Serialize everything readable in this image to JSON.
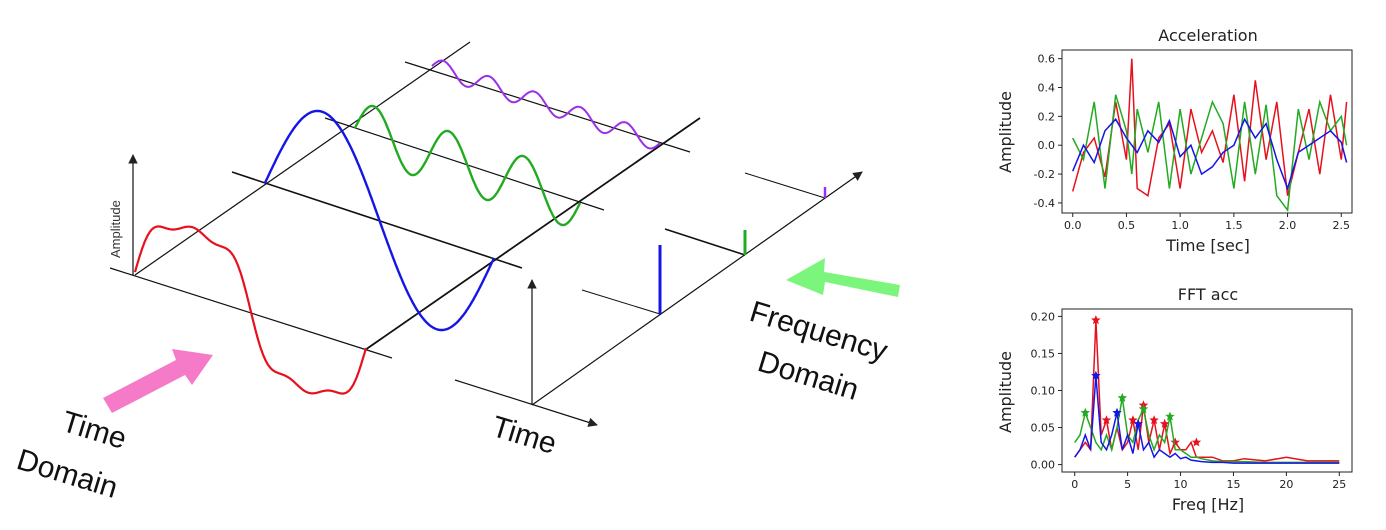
{
  "diagram": {
    "labels": {
      "amplitude_axis": "Amplitude",
      "time_domain_line1": "Time",
      "time_domain_line2": "Domain",
      "time_axis": "Time",
      "freq_domain_line1": "Frequency",
      "freq_domain_line2": "Domain"
    },
    "colors": {
      "composite": "#e8101c",
      "wave1": "#1515e6",
      "wave2": "#22aa22",
      "wave3": "#9b30e8",
      "time_arrow": "#f57bc8",
      "freq_arrow": "#7cf57c"
    }
  },
  "chart_data": [
    {
      "type": "line",
      "title": "Acceleration",
      "xlabel": "Time [sec]",
      "ylabel": "Amplitude",
      "xlim": [
        -0.1,
        2.6
      ],
      "ylim": [
        -0.47,
        0.66
      ],
      "xticks": [
        "0.0",
        "0.5",
        "1.0",
        "1.5",
        "2.0",
        "2.5"
      ],
      "yticks": [
        "-0.4",
        "-0.2",
        "0.0",
        "0.2",
        "0.4",
        "0.6"
      ],
      "x": [
        0.0,
        0.1,
        0.2,
        0.3,
        0.4,
        0.5,
        0.55,
        0.6,
        0.7,
        0.8,
        0.9,
        1.0,
        1.1,
        1.2,
        1.3,
        1.4,
        1.5,
        1.6,
        1.7,
        1.8,
        1.9,
        2.0,
        2.1,
        2.2,
        2.3,
        2.4,
        2.5,
        2.55
      ],
      "series": [
        {
          "color": "#e8101c",
          "values": [
            -0.32,
            -0.05,
            0.05,
            -0.22,
            0.3,
            -0.1,
            0.6,
            -0.3,
            -0.35,
            0.05,
            0.15,
            -0.3,
            0.25,
            -0.05,
            0.1,
            -0.12,
            0.35,
            -0.25,
            0.45,
            -0.1,
            0.3,
            -0.35,
            -0.05,
            0.25,
            -0.2,
            0.35,
            -0.1,
            0.3
          ]
        },
        {
          "color": "#22aa22",
          "values": [
            0.05,
            -0.1,
            0.3,
            -0.3,
            0.35,
            0.1,
            -0.2,
            0.25,
            -0.05,
            0.3,
            -0.3,
            0.25,
            -0.2,
            0.05,
            0.3,
            0.15,
            -0.3,
            0.3,
            -0.2,
            0.28,
            -0.35,
            -0.45,
            0.25,
            -0.1,
            0.3,
            0.1,
            0.2,
            0.0
          ]
        },
        {
          "color": "#1515e6",
          "values": [
            -0.18,
            0.0,
            -0.12,
            0.1,
            0.18,
            0.05,
            0.0,
            -0.05,
            0.1,
            0.02,
            0.17,
            -0.08,
            0.0,
            -0.2,
            -0.15,
            -0.05,
            0.0,
            0.18,
            0.05,
            0.15,
            -0.1,
            -0.3,
            -0.05,
            0.0,
            0.05,
            0.1,
            0.02,
            -0.12
          ]
        }
      ]
    },
    {
      "type": "line",
      "title": "FFT acc",
      "xlabel": "Freq [Hz]",
      "ylabel": "Amplitude",
      "xlim": [
        -1.2,
        26.2
      ],
      "ylim": [
        -0.01,
        0.21
      ],
      "xticks": [
        "0",
        "5",
        "10",
        "15",
        "20",
        "25"
      ],
      "yticks": [
        "0.00",
        "0.05",
        "0.10",
        "0.15",
        "0.20"
      ],
      "x": [
        0,
        0.5,
        1,
        1.5,
        2,
        2.5,
        3,
        3.5,
        4,
        4.5,
        5,
        5.5,
        6,
        6.5,
        7,
        7.5,
        8,
        8.5,
        9,
        9.5,
        10,
        10.5,
        11,
        11.5,
        12,
        13,
        14,
        15,
        16,
        18,
        20,
        22,
        25
      ],
      "series": [
        {
          "color": "#e8101c",
          "markers": [
            [
              2.0,
              0.195
            ],
            [
              3.0,
              0.06
            ],
            [
              5.5,
              0.06
            ],
            [
              6.5,
              0.08
            ],
            [
              7.5,
              0.06
            ],
            [
              8.5,
              0.055
            ],
            [
              9.5,
              0.03
            ],
            [
              11.5,
              0.03
            ]
          ],
          "values": [
            0.01,
            0.02,
            0.03,
            0.02,
            0.195,
            0.04,
            0.06,
            0.02,
            0.05,
            0.02,
            0.03,
            0.06,
            0.02,
            0.08,
            0.03,
            0.06,
            0.02,
            0.055,
            0.015,
            0.03,
            0.02,
            0.02,
            0.03,
            0.01,
            0.01,
            0.01,
            0.005,
            0.005,
            0.008,
            0.005,
            0.01,
            0.005,
            0.005
          ]
        },
        {
          "color": "#22aa22",
          "markers": [
            [
              1.0,
              0.07
            ],
            [
              4.5,
              0.09
            ],
            [
              6.5,
              0.075
            ],
            [
              9.0,
              0.065
            ]
          ],
          "values": [
            0.03,
            0.04,
            0.07,
            0.05,
            0.03,
            0.02,
            0.04,
            0.02,
            0.05,
            0.09,
            0.04,
            0.03,
            0.06,
            0.075,
            0.04,
            0.02,
            0.04,
            0.03,
            0.065,
            0.02,
            0.02,
            0.015,
            0.01,
            0.01,
            0.008,
            0.005,
            0.004,
            0.004,
            0.004,
            0.003,
            0.003,
            0.003,
            0.003
          ]
        },
        {
          "color": "#1515e6",
          "markers": [
            [
              2.0,
              0.12
            ],
            [
              4.0,
              0.07
            ],
            [
              6.0,
              0.055
            ]
          ],
          "values": [
            0.01,
            0.02,
            0.04,
            0.02,
            0.12,
            0.03,
            0.02,
            0.04,
            0.07,
            0.02,
            0.04,
            0.015,
            0.055,
            0.02,
            0.03,
            0.01,
            0.02,
            0.015,
            0.01,
            0.015,
            0.008,
            0.01,
            0.006,
            0.005,
            0.004,
            0.003,
            0.003,
            0.002,
            0.002,
            0.002,
            0.002,
            0.002,
            0.002
          ]
        }
      ]
    }
  ]
}
